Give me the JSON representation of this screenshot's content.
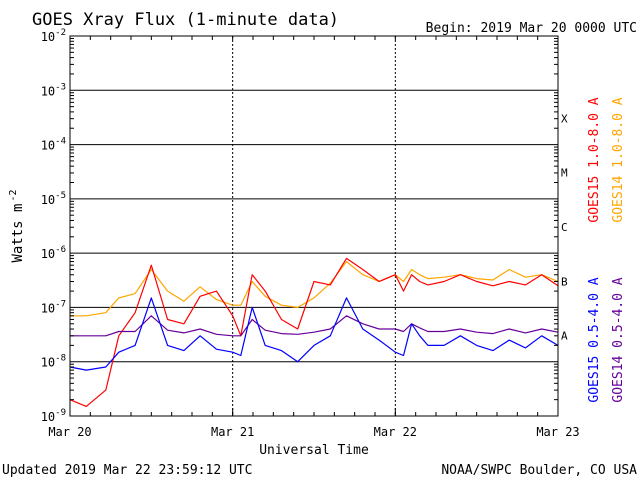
{
  "chart_data": {
    "type": "line",
    "title": "GOES Xray Flux (1-minute data)",
    "begin": "Begin:  2019 Mar 20 0000 UTC",
    "xlabel": "Universal Time",
    "ylabel": "Watts m",
    "ylabel_sup": "-2",
    "y_scale": "log",
    "ylim": [
      1e-09,
      0.01
    ],
    "xlim_days": [
      0,
      3
    ],
    "grid": true,
    "y_ticks": [
      {
        "base": "10",
        "exp": "-9",
        "value": 1e-09
      },
      {
        "base": "10",
        "exp": "-8",
        "value": 1e-08
      },
      {
        "base": "10",
        "exp": "-7",
        "value": 1e-07
      },
      {
        "base": "10",
        "exp": "-6",
        "value": 1e-06
      },
      {
        "base": "10",
        "exp": "-5",
        "value": 1e-05
      },
      {
        "base": "10",
        "exp": "-4",
        "value": 0.0001
      },
      {
        "base": "10",
        "exp": "-3",
        "value": 0.001
      },
      {
        "base": "10",
        "exp": "-2",
        "value": 0.01
      }
    ],
    "x_ticks": [
      {
        "label": "Mar 20",
        "day": 0
      },
      {
        "label": "Mar 21",
        "day": 1
      },
      {
        "label": "Mar 22",
        "day": 2
      },
      {
        "label": "Mar 23",
        "day": 3
      }
    ],
    "flare_classes": [
      {
        "label": "A",
        "value": 1e-08
      },
      {
        "label": "B",
        "value": 1e-07
      },
      {
        "label": "C",
        "value": 1e-06
      },
      {
        "label": "M",
        "value": 1e-05
      },
      {
        "label": "X",
        "value": 0.0001
      }
    ],
    "series": [
      {
        "name": "GOES15 1.0-8.0 A",
        "color": "#ff0000",
        "x": [
          0.0,
          0.1,
          0.22,
          0.3,
          0.4,
          0.5,
          0.6,
          0.7,
          0.8,
          0.9,
          1.0,
          1.05,
          1.12,
          1.2,
          1.3,
          1.4,
          1.5,
          1.6,
          1.7,
          1.8,
          1.9,
          2.0,
          2.05,
          2.1,
          2.15,
          2.2,
          2.3,
          2.4,
          2.5,
          2.6,
          2.7,
          2.8,
          2.9,
          3.0
        ],
        "y": [
          2e-09,
          1.5e-09,
          3e-09,
          3e-08,
          8e-08,
          6e-07,
          6e-08,
          5e-08,
          1.6e-07,
          2e-07,
          7e-08,
          3e-08,
          4e-07,
          2e-07,
          6e-08,
          4e-08,
          3e-07,
          2.6e-07,
          8e-07,
          5e-07,
          3e-07,
          4e-07,
          2e-07,
          4e-07,
          3e-07,
          2.6e-07,
          3e-07,
          4e-07,
          3e-07,
          2.5e-07,
          3e-07,
          2.6e-07,
          4e-07,
          2.5e-07
        ]
      },
      {
        "name": "GOES14 1.0-8.0 A",
        "color": "#ffa500",
        "x": [
          0.0,
          0.1,
          0.22,
          0.3,
          0.4,
          0.5,
          0.6,
          0.7,
          0.8,
          0.9,
          1.0,
          1.05,
          1.12,
          1.2,
          1.3,
          1.4,
          1.5,
          1.6,
          1.7,
          1.8,
          1.9,
          2.0,
          2.05,
          2.1,
          2.15,
          2.2,
          2.3,
          2.4,
          2.5,
          2.6,
          2.7,
          2.8,
          2.9,
          3.0
        ],
        "y": [
          7e-08,
          7e-08,
          8e-08,
          1.5e-07,
          1.8e-07,
          5e-07,
          2e-07,
          1.3e-07,
          2.4e-07,
          1.4e-07,
          1.1e-07,
          1.1e-07,
          3e-07,
          1.6e-07,
          1.1e-07,
          1e-07,
          1.5e-07,
          2.8e-07,
          7e-07,
          4e-07,
          3e-07,
          4e-07,
          3e-07,
          5e-07,
          4e-07,
          3.4e-07,
          3.6e-07,
          4e-07,
          3.4e-07,
          3.2e-07,
          5e-07,
          3.6e-07,
          4e-07,
          3e-07
        ]
      },
      {
        "name": "GOES15 0.5-4.0 A",
        "color": "#0000ff",
        "x": [
          0.0,
          0.1,
          0.22,
          0.3,
          0.4,
          0.5,
          0.6,
          0.7,
          0.8,
          0.9,
          1.0,
          1.05,
          1.12,
          1.2,
          1.3,
          1.4,
          1.5,
          1.6,
          1.7,
          1.8,
          1.9,
          2.0,
          2.05,
          2.1,
          2.15,
          2.2,
          2.3,
          2.4,
          2.5,
          2.6,
          2.7,
          2.8,
          2.9,
          3.0
        ],
        "y": [
          8e-09,
          7e-09,
          8e-09,
          1.5e-08,
          2e-08,
          1.5e-07,
          2e-08,
          1.6e-08,
          3e-08,
          1.7e-08,
          1.5e-08,
          1.3e-08,
          1e-07,
          2e-08,
          1.6e-08,
          1e-08,
          2e-08,
          3e-08,
          1.5e-07,
          4e-08,
          2.5e-08,
          1.5e-08,
          1.3e-08,
          5e-08,
          3e-08,
          2e-08,
          2e-08,
          3e-08,
          2e-08,
          1.6e-08,
          2.5e-08,
          1.8e-08,
          3e-08,
          2e-08
        ]
      },
      {
        "name": "GOES14 0.5-4.0 A",
        "color": "#660099",
        "x": [
          0.0,
          0.1,
          0.22,
          0.3,
          0.4,
          0.5,
          0.6,
          0.7,
          0.8,
          0.9,
          1.0,
          1.05,
          1.12,
          1.2,
          1.3,
          1.4,
          1.5,
          1.6,
          1.7,
          1.8,
          1.9,
          2.0,
          2.05,
          2.1,
          2.15,
          2.2,
          2.3,
          2.4,
          2.5,
          2.6,
          2.7,
          2.8,
          2.9,
          3.0
        ],
        "y": [
          3e-08,
          3e-08,
          3e-08,
          3.6e-08,
          3.6e-08,
          7e-08,
          3.8e-08,
          3.4e-08,
          4e-08,
          3.2e-08,
          3e-08,
          3e-08,
          6e-08,
          3.8e-08,
          3.3e-08,
          3.2e-08,
          3.5e-08,
          4e-08,
          7e-08,
          5e-08,
          4e-08,
          4e-08,
          3.6e-08,
          5e-08,
          4.2e-08,
          3.6e-08,
          3.6e-08,
          4e-08,
          3.5e-08,
          3.3e-08,
          4e-08,
          3.4e-08,
          4e-08,
          3.5e-08
        ]
      }
    ]
  },
  "footer": {
    "updated": "Updated 2019 Mar 22 23:59:12 UTC",
    "credit": "NOAA/SWPC Boulder, CO USA"
  }
}
